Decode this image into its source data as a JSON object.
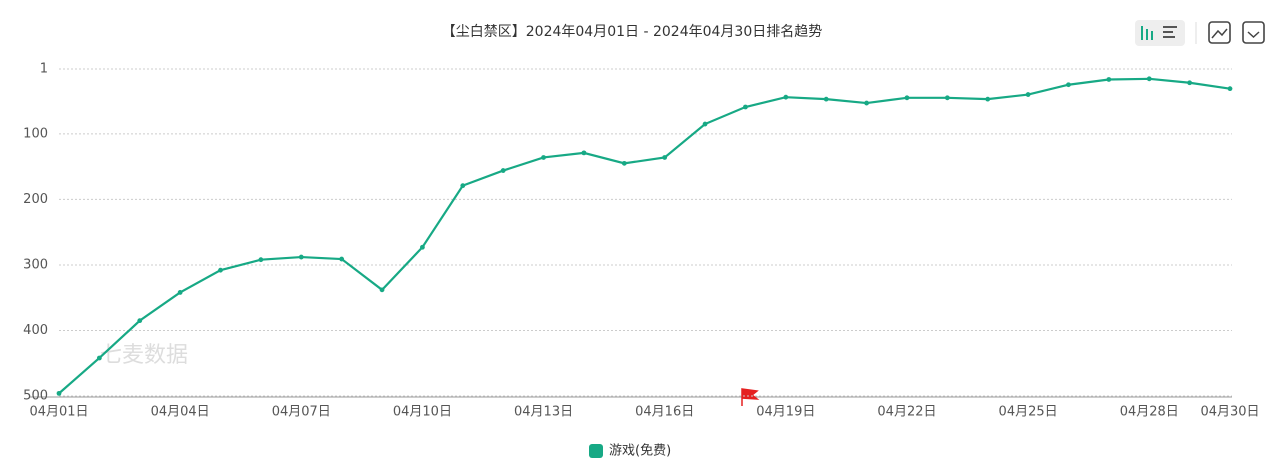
{
  "chart_data": {
    "type": "line",
    "title": "【尘白禁区】2024年04月01日 - 2024年04月30日排名趋势",
    "watermark": "七麦数据",
    "categories": [
      "04月01日",
      null,
      null,
      "04月04日",
      null,
      null,
      "04月07日",
      null,
      null,
      "04月10日",
      null,
      null,
      "04月13日",
      null,
      null,
      "04月16日",
      null,
      null,
      "04月19日",
      null,
      null,
      "04月22日",
      null,
      null,
      "04月25日",
      null,
      null,
      "04月28日",
      null,
      "04月30日"
    ],
    "series": [
      {
        "name": "游戏(免费)",
        "color": "#17a985",
        "values": [
          496,
          442,
          385,
          342,
          308,
          292,
          288,
          291,
          338,
          273,
          179,
          156,
          136,
          129,
          145,
          136,
          85,
          59,
          44,
          47,
          53,
          45,
          45,
          47,
          40,
          25,
          17,
          16,
          22,
          31
        ]
      }
    ],
    "ylim": [
      500,
      1
    ],
    "yticks": [
      1,
      100,
      200,
      300,
      400,
      500
    ],
    "inverted": true,
    "grid": true
  }
}
